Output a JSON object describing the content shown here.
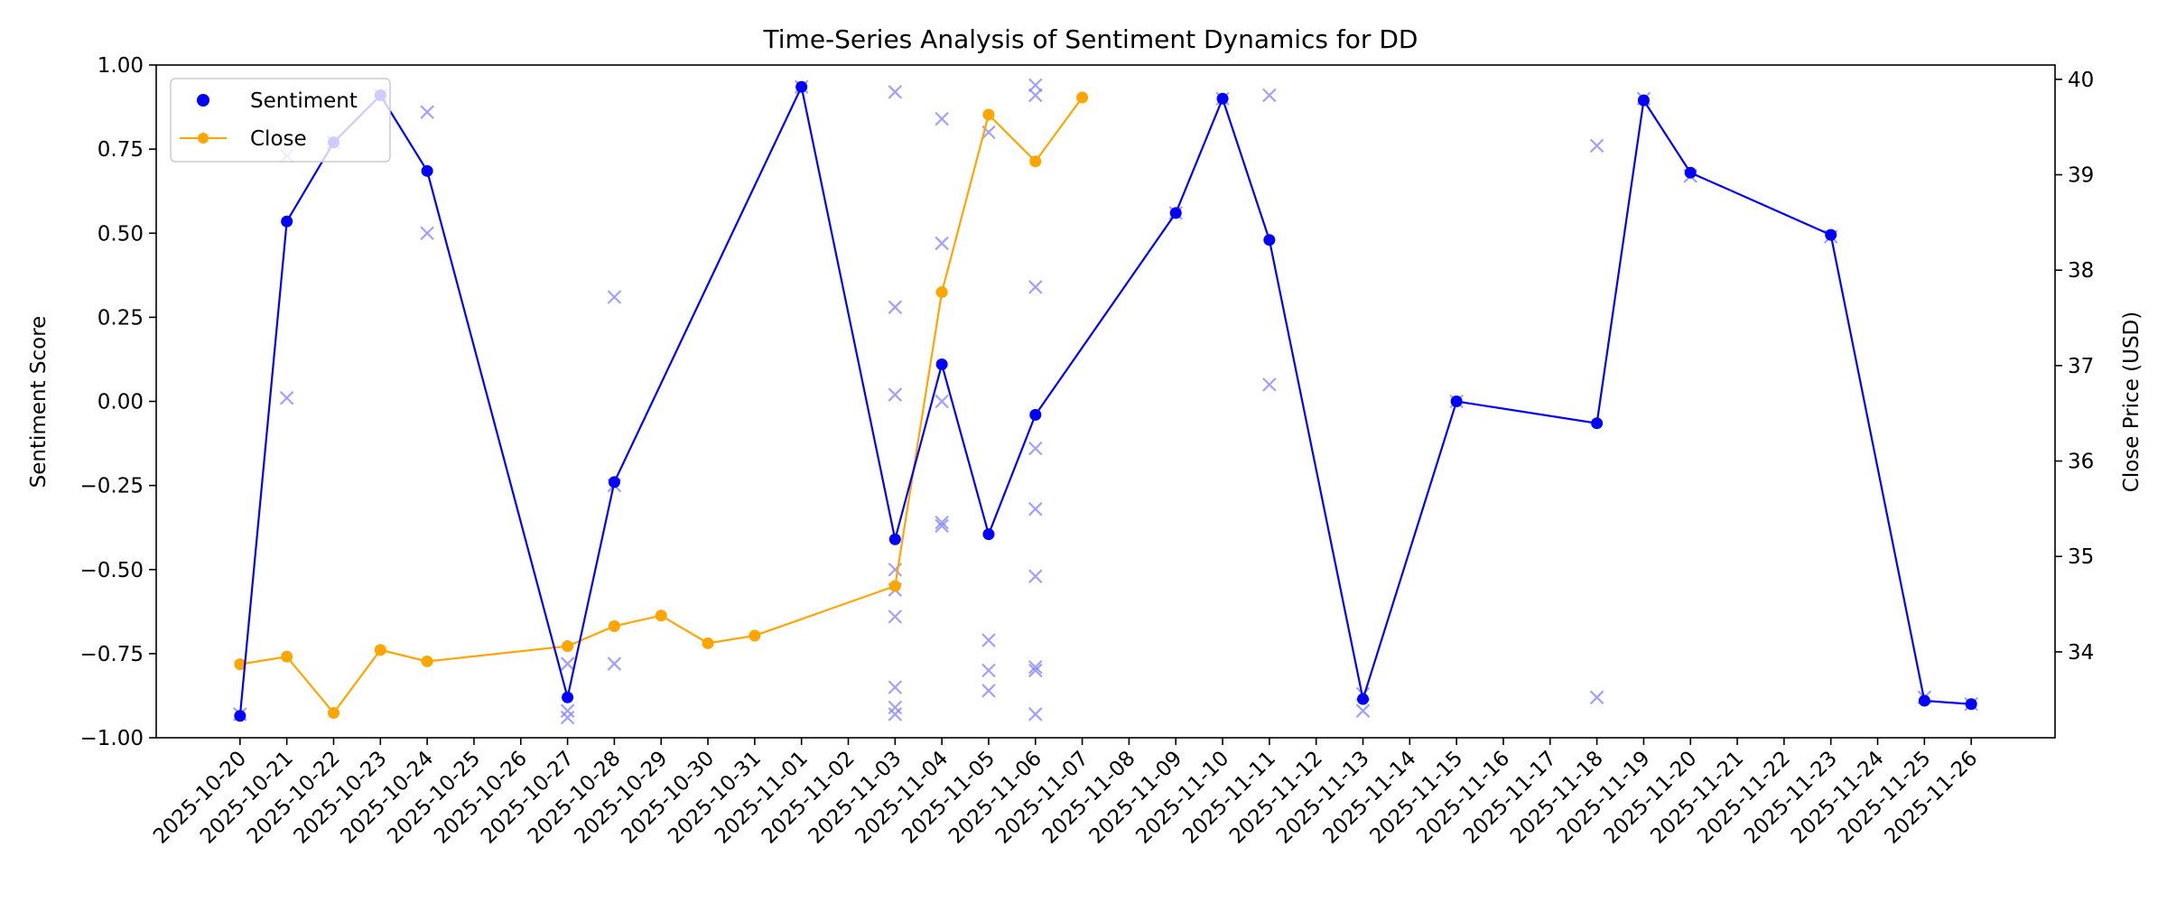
{
  "chart_data": {
    "type": "line",
    "title": "Time-Series Analysis of Sentiment Dynamics for DD",
    "ylabel_left": "Sentiment Score",
    "ylabel_right": "Close Price (USD)",
    "x_tick_labels": [
      "2025-10-20",
      "2025-10-21",
      "2025-10-22",
      "2025-10-23",
      "2025-10-24",
      "2025-10-25",
      "2025-10-26",
      "2025-10-27",
      "2025-10-28",
      "2025-10-29",
      "2025-10-30",
      "2025-10-31",
      "2025-11-01",
      "2025-11-02",
      "2025-11-03",
      "2025-11-04",
      "2025-11-05",
      "2025-11-06",
      "2025-11-07",
      "2025-11-08",
      "2025-11-09",
      "2025-11-10",
      "2025-11-11",
      "2025-11-12",
      "2025-11-13",
      "2025-11-14",
      "2025-11-15",
      "2025-11-16",
      "2025-11-17",
      "2025-11-18",
      "2025-11-19",
      "2025-11-20",
      "2025-11-21",
      "2025-11-22",
      "2025-11-23",
      "2025-11-24",
      "2025-11-25",
      "2025-11-26"
    ],
    "xlim": [
      "2025-10-18T05:00",
      "2025-11-27T19:00"
    ],
    "ylim_left": [
      -1.0,
      1.0
    ],
    "ylim_right": [
      33.1,
      40.15
    ],
    "yticks_left": [
      "1.00",
      "0.75",
      "0.50",
      "0.25",
      "0.00",
      "−0.25",
      "−0.50",
      "−0.75",
      "−1.00"
    ],
    "yticks_right": [
      "34",
      "35",
      "36",
      "37",
      "38",
      "39",
      "40"
    ],
    "legend": {
      "position": "upper-left",
      "entries": [
        "Sentiment",
        "Close"
      ]
    },
    "colors": {
      "sentiment": "#0000ff",
      "close": "#ffa500",
      "raw": "#8080ff"
    },
    "series": [
      {
        "name": "Sentiment",
        "axis": "left",
        "style": "line+markers",
        "points": [
          [
            "2025-10-20",
            -0.935
          ],
          [
            "2025-10-21",
            0.535
          ],
          [
            "2025-10-22",
            0.77
          ],
          [
            "2025-10-23",
            0.91
          ],
          [
            "2025-10-24",
            0.685
          ],
          [
            "2025-10-27",
            -0.88
          ],
          [
            "2025-10-28",
            -0.24
          ],
          [
            "2025-11-01",
            0.935
          ],
          [
            "2025-11-03",
            -0.41
          ],
          [
            "2025-11-04",
            0.11
          ],
          [
            "2025-11-05",
            -0.395
          ],
          [
            "2025-11-06",
            -0.04
          ],
          [
            "2025-11-09",
            0.56
          ],
          [
            "2025-11-10",
            0.9
          ],
          [
            "2025-11-11",
            0.48
          ],
          [
            "2025-11-13",
            -0.885
          ],
          [
            "2025-11-15",
            0.0
          ],
          [
            "2025-11-18",
            -0.065
          ],
          [
            "2025-11-19",
            0.895
          ],
          [
            "2025-11-20",
            0.68
          ],
          [
            "2025-11-23",
            0.495
          ],
          [
            "2025-11-25",
            -0.89
          ],
          [
            "2025-11-26",
            -0.9
          ]
        ]
      },
      {
        "name": "Close",
        "axis": "right",
        "style": "line+markers",
        "points": [
          [
            "2025-10-20",
            33.87
          ],
          [
            "2025-10-21",
            33.95
          ],
          [
            "2025-10-22",
            33.36
          ],
          [
            "2025-10-23",
            34.02
          ],
          [
            "2025-10-24",
            33.9
          ],
          [
            "2025-10-27",
            34.06
          ],
          [
            "2025-10-28",
            34.27
          ],
          [
            "2025-10-29",
            34.38
          ],
          [
            "2025-10-30",
            34.09
          ],
          [
            "2025-10-31",
            34.17
          ],
          [
            "2025-11-03",
            34.69
          ],
          [
            "2025-11-04",
            37.77
          ],
          [
            "2025-11-05",
            39.63
          ],
          [
            "2025-11-06",
            39.14
          ],
          [
            "2025-11-07",
            39.81
          ]
        ]
      },
      {
        "name": "",
        "axis": "left",
        "style": "x-markers",
        "points": [
          [
            "2025-10-20",
            -0.93
          ],
          [
            "2025-10-21",
            0.01
          ],
          [
            "2025-10-21",
            0.73
          ],
          [
            "2025-10-22",
            0.77
          ],
          [
            "2025-10-23",
            0.91
          ],
          [
            "2025-10-24",
            0.86
          ],
          [
            "2025-10-24",
            0.5
          ],
          [
            "2025-10-27",
            -0.78
          ],
          [
            "2025-10-27",
            -0.92
          ],
          [
            "2025-10-27",
            -0.94
          ],
          [
            "2025-10-28",
            0.31
          ],
          [
            "2025-10-28",
            -0.25
          ],
          [
            "2025-10-28",
            -0.78
          ],
          [
            "2025-11-01",
            0.935
          ],
          [
            "2025-11-03",
            0.92
          ],
          [
            "2025-11-03",
            0.28
          ],
          [
            "2025-11-03",
            0.02
          ],
          [
            "2025-11-03",
            -0.5
          ],
          [
            "2025-11-03",
            -0.56
          ],
          [
            "2025-11-03",
            -0.64
          ],
          [
            "2025-11-03",
            -0.85
          ],
          [
            "2025-11-03",
            -0.91
          ],
          [
            "2025-11-03",
            -0.93
          ],
          [
            "2025-11-04",
            0.84
          ],
          [
            "2025-11-04",
            0.47
          ],
          [
            "2025-11-04",
            0.0
          ],
          [
            "2025-11-04",
            -0.36
          ],
          [
            "2025-11-04",
            -0.37
          ],
          [
            "2025-11-05",
            0.8
          ],
          [
            "2025-11-05",
            -0.71
          ],
          [
            "2025-11-05",
            -0.8
          ],
          [
            "2025-11-05",
            -0.86
          ],
          [
            "2025-11-06",
            0.94
          ],
          [
            "2025-11-06",
            0.91
          ],
          [
            "2025-11-06",
            0.34
          ],
          [
            "2025-11-06",
            -0.14
          ],
          [
            "2025-11-06",
            -0.32
          ],
          [
            "2025-11-06",
            -0.52
          ],
          [
            "2025-11-06",
            -0.79
          ],
          [
            "2025-11-06",
            -0.8
          ],
          [
            "2025-11-06",
            -0.93
          ],
          [
            "2025-11-09",
            0.56
          ],
          [
            "2025-11-10",
            0.9
          ],
          [
            "2025-11-11",
            0.91
          ],
          [
            "2025-11-11",
            0.05
          ],
          [
            "2025-11-13",
            -0.87
          ],
          [
            "2025-11-13",
            -0.92
          ],
          [
            "2025-11-15",
            0.0
          ],
          [
            "2025-11-18",
            0.76
          ],
          [
            "2025-11-18",
            -0.88
          ],
          [
            "2025-11-19",
            0.9
          ],
          [
            "2025-11-20",
            0.67
          ],
          [
            "2025-11-23",
            0.49
          ],
          [
            "2025-11-25",
            -0.88
          ],
          [
            "2025-11-26",
            -0.9
          ]
        ]
      }
    ]
  }
}
